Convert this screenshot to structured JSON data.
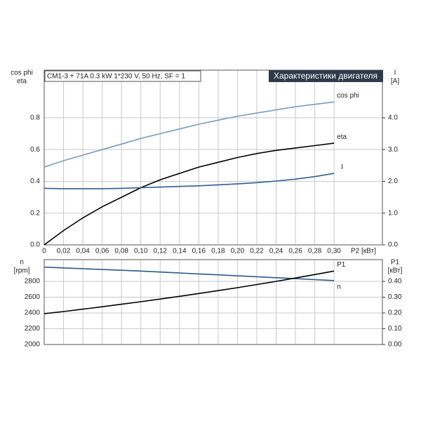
{
  "chart_data": [
    {
      "type": "line",
      "header": "CM1-3 + 71A   0.3 kW   1*230 V, 50 Hz, SF = 1",
      "title": "Характеристики двигателя",
      "y_label": [
        "cos phi",
        "eta"
      ],
      "y2_label": [
        "I",
        "[A]"
      ],
      "x_label": "P2 [кВт]",
      "x": [
        0,
        0.02,
        0.04,
        0.06,
        0.08,
        0.1,
        0.12,
        0.14,
        0.16,
        0.18,
        0.2,
        0.22,
        0.24,
        0.26,
        0.28,
        0.3
      ],
      "series": [
        {
          "name": "cos phi",
          "color": "#7a9cb6",
          "values": [
            0.49,
            0.53,
            0.565,
            0.6,
            0.635,
            0.67,
            0.7,
            0.73,
            0.76,
            0.785,
            0.81,
            0.83,
            0.85,
            0.87,
            0.885,
            0.9
          ]
        },
        {
          "name": "eta",
          "color": "#000000",
          "values": [
            0,
            0.09,
            0.17,
            0.24,
            0.3,
            0.36,
            0.41,
            0.45,
            0.49,
            0.52,
            0.55,
            0.575,
            0.595,
            0.61,
            0.625,
            0.64
          ]
        },
        {
          "name": "I",
          "color": "#2f5f8f",
          "axis": "y2",
          "values": [
            1.78,
            1.77,
            1.77,
            1.77,
            1.78,
            1.8,
            1.82,
            1.84,
            1.86,
            1.89,
            1.92,
            1.96,
            2.01,
            2.07,
            2.15,
            2.25
          ]
        }
      ],
      "xlim": [
        0,
        0.35
      ],
      "xticks": [
        0,
        {
          "value": 0.02,
          "label": "0,02"
        },
        {
          "value": 0.04,
          "label": "0,04"
        },
        {
          "value": 0.06,
          "label": "0,06"
        },
        {
          "value": 0.08,
          "label": "0,08"
        },
        {
          "value": 0.1,
          "label": "0,10"
        },
        {
          "value": 0.12,
          "label": "0,12"
        },
        {
          "value": 0.14,
          "label": "0,14"
        },
        {
          "value": 0.16,
          "label": "0,16"
        },
        {
          "value": 0.18,
          "label": "0,18"
        },
        {
          "value": 0.2,
          "label": "0,20"
        },
        {
          "value": 0.22,
          "label": "0,22"
        },
        {
          "value": 0.24,
          "label": "0,24"
        },
        {
          "value": 0.26,
          "label": "0,26"
        },
        {
          "value": 0.28,
          "label": "0,28"
        },
        {
          "value": 0.3,
          "label": "0,30"
        }
      ],
      "ylim": [
        0,
        1.1
      ],
      "yticks": [
        {
          "value": 0,
          "label": "0.0"
        },
        {
          "value": 0.2,
          "label": "0.2"
        },
        {
          "value": 0.4,
          "label": "0.4"
        },
        {
          "value": 0.6,
          "label": "0.6"
        },
        {
          "value": 0.8,
          "label": "0.8"
        }
      ],
      "y2lim": [
        0,
        5.5
      ],
      "y2ticks": [
        {
          "value": 0,
          "label": "0.0"
        },
        {
          "value": 1,
          "label": "1.0"
        },
        {
          "value": 2,
          "label": "2.0"
        },
        {
          "value": 3,
          "label": "3.0"
        },
        {
          "value": 4,
          "label": "4.0"
        }
      ],
      "grid": true
    },
    {
      "type": "line",
      "y_label": [
        "n",
        "[rpm]"
      ],
      "y2_label": [
        "P1",
        "[кВт]"
      ],
      "x": [
        0,
        0.02,
        0.04,
        0.06,
        0.08,
        0.1,
        0.12,
        0.14,
        0.16,
        0.18,
        0.2,
        0.22,
        0.24,
        0.26,
        0.28,
        0.3
      ],
      "series": [
        {
          "name": "n",
          "color": "#2c5a8a",
          "values": [
            2980,
            2970,
            2960,
            2950,
            2940,
            2930,
            2918,
            2906,
            2894,
            2882,
            2870,
            2858,
            2846,
            2834,
            2822,
            2810
          ]
        },
        {
          "name": "P1",
          "color": "#000000",
          "axis": "y2",
          "values": [
            0.195,
            0.209,
            0.224,
            0.239,
            0.255,
            0.271,
            0.288,
            0.305,
            0.323,
            0.341,
            0.36,
            0.38,
            0.4,
            0.421,
            0.443,
            0.465
          ]
        }
      ],
      "xlim": [
        0,
        0.35
      ],
      "xticks": [
        0,
        0.02,
        0.04,
        0.06,
        0.08,
        0.1,
        0.12,
        0.14,
        0.16,
        0.18,
        0.2,
        0.22,
        0.24,
        0.26,
        0.28,
        0.3
      ],
      "ylim": [
        2000,
        3075
      ],
      "yticks": [
        2000,
        2200,
        2400,
        2600,
        2800
      ],
      "y2lim": [
        0,
        0.5375
      ],
      "y2ticks": [
        {
          "value": 0,
          "label": "0.00"
        },
        {
          "value": 0.1,
          "label": "0.10"
        },
        {
          "value": 0.2,
          "label": "0.20"
        },
        {
          "value": 0.3,
          "label": "0.30"
        },
        {
          "value": 0.4,
          "label": "0.40"
        }
      ],
      "grid": true
    }
  ]
}
